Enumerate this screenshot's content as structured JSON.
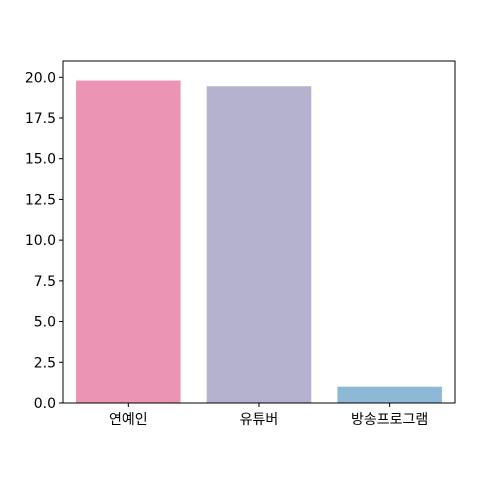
{
  "chart_data": {
    "type": "bar",
    "title": "",
    "xlabel": "",
    "ylabel": "",
    "categories": [
      "연예인",
      "유튜버",
      "방송프로그램"
    ],
    "values": [
      19.8,
      19.45,
      1.0
    ],
    "colors": [
      "#eb94b4",
      "#b4b2cf",
      "#8db8d6"
    ],
    "ylim": [
      0,
      21
    ],
    "yticks": [
      "0.0",
      "2.5",
      "5.0",
      "7.5",
      "10.0",
      "12.5",
      "15.0",
      "17.5",
      "20.0"
    ],
    "grid": false,
    "legend": "none"
  }
}
